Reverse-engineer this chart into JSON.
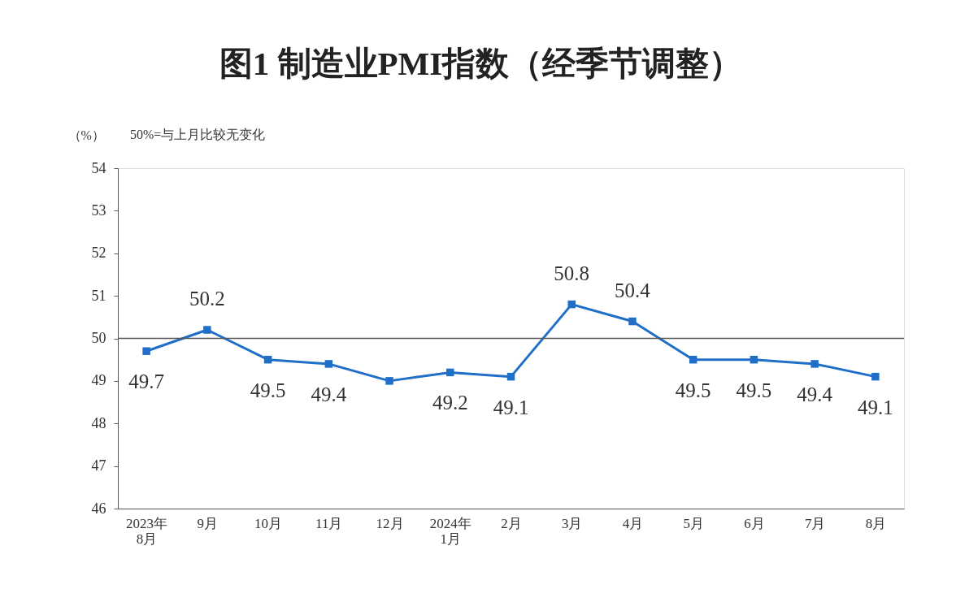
{
  "chart_data": {
    "type": "line",
    "title": "图1  制造业PMI指数（经季节调整）",
    "ylabel": "（%）",
    "annotations": [
      "50%=与上月比较无变化"
    ],
    "categories": [
      "2023年\n8月",
      "9月",
      "10月",
      "11月",
      "12月",
      "2024年\n1月",
      "2月",
      "3月",
      "4月",
      "5月",
      "6月",
      "7月",
      "8月"
    ],
    "series": [
      {
        "color": "#1f6fc9",
        "values": [
          49.7,
          50.2,
          49.5,
          49.4,
          49.0,
          49.2,
          49.1,
          50.8,
          50.4,
          49.5,
          49.5,
          49.4,
          49.1
        ],
        "value_labels": [
          "49.7",
          "50.2",
          "49.5",
          "49.4",
          null,
          "49.2",
          "49.1",
          "50.8",
          "50.4",
          "49.5",
          "49.5",
          "49.4",
          "49.1"
        ]
      }
    ],
    "ylim": [
      46,
      54
    ],
    "yticks": [
      46,
      47,
      48,
      49,
      50,
      51,
      52,
      53,
      54
    ],
    "grid": false,
    "marker": "square",
    "line_style": "solid",
    "ref_lines": [
      {
        "axis": "y",
        "value": 50,
        "color": "#555555"
      }
    ]
  }
}
